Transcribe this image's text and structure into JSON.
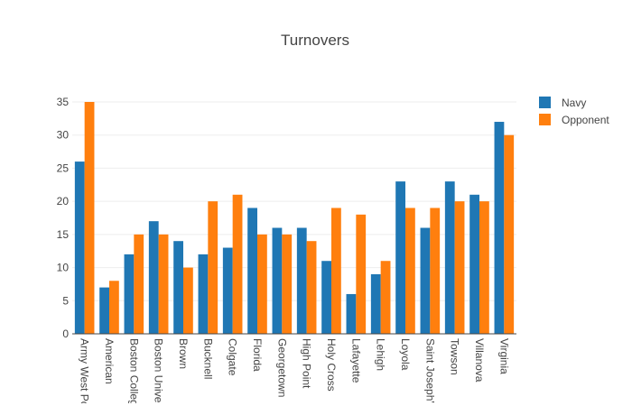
{
  "chart_data": {
    "type": "bar",
    "title": "Turnovers",
    "xlabel": "",
    "ylabel": "",
    "ylim": [
      0,
      35
    ],
    "yticks": [
      0,
      5,
      10,
      15,
      20,
      25,
      30,
      35
    ],
    "grid": true,
    "legend_position": "top-right",
    "categories": [
      "Army West Point",
      "American",
      "Boston College",
      "Boston University",
      "Brown",
      "Bucknell",
      "Colgate",
      "Florida",
      "Georgetown",
      "High Point",
      "Holy Cross",
      "Lafayette",
      "Lehigh",
      "Loyola",
      "Saint Joseph's",
      "Towson",
      "Villanova",
      "Virginia"
    ],
    "series": [
      {
        "name": "Navy",
        "color": "#1f77b4",
        "values": [
          26,
          7,
          12,
          17,
          14,
          12,
          13,
          19,
          16,
          16,
          11,
          6,
          9,
          23,
          16,
          23,
          21,
          32
        ]
      },
      {
        "name": "Opponent",
        "color": "#ff7f0e",
        "values": [
          35,
          8,
          15,
          15,
          10,
          20,
          21,
          15,
          15,
          14,
          19,
          18,
          11,
          19,
          19,
          20,
          20,
          30
        ]
      }
    ]
  }
}
